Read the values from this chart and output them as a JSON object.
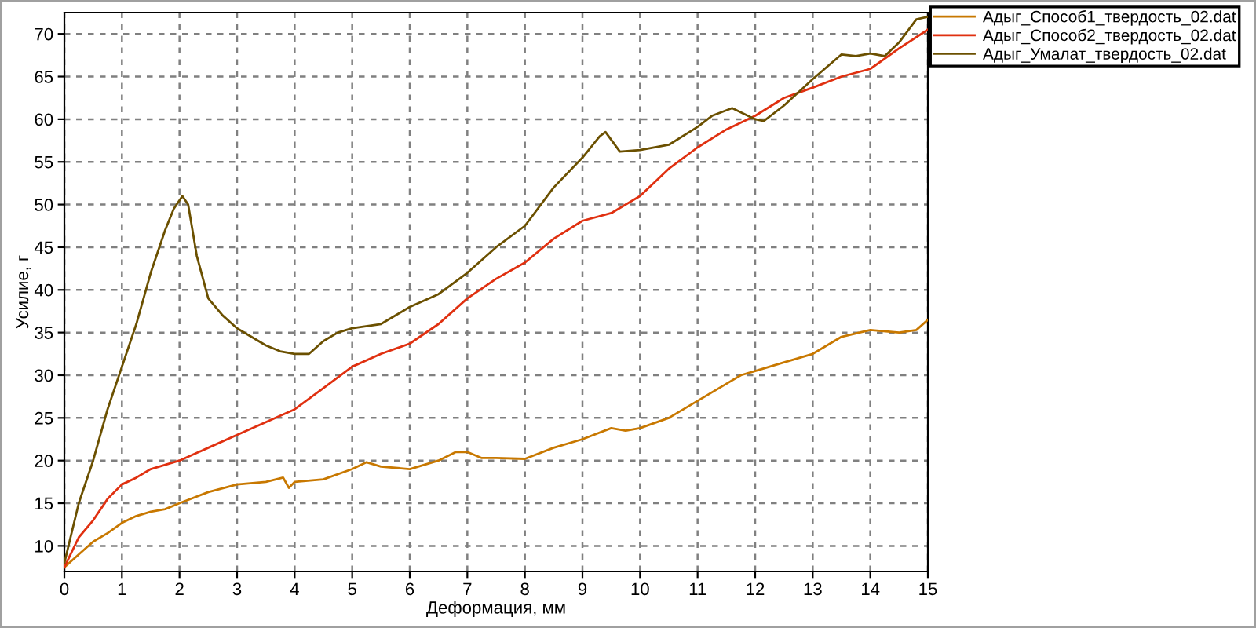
{
  "chart_data": {
    "type": "line",
    "xlabel": "Деформация, мм",
    "ylabel": "Усилие, г",
    "xlim": [
      0,
      15
    ],
    "ylim": [
      7,
      72.5
    ],
    "xticks": [
      0,
      1,
      2,
      3,
      4,
      5,
      6,
      7,
      8,
      9,
      10,
      11,
      12,
      13,
      14,
      15
    ],
    "yticks": [
      10,
      15,
      20,
      25,
      30,
      35,
      40,
      45,
      50,
      55,
      60,
      65,
      70
    ],
    "grid": true,
    "legend": "top right",
    "line_style": "solid",
    "marker": "none",
    "series": [
      {
        "name": "Адыг_Способ1_твердость_02.dat",
        "color": "#c87800",
        "x": [
          0,
          0.25,
          0.5,
          0.75,
          1,
          1.25,
          1.5,
          1.75,
          2,
          2.5,
          3,
          3.5,
          3.8,
          3.9,
          4,
          4.5,
          5,
          5.25,
          5.5,
          6,
          6.5,
          6.8,
          7,
          7.25,
          7.5,
          8,
          8.5,
          9,
          9.5,
          9.75,
          10,
          10.5,
          11,
          11.5,
          11.75,
          12,
          12.5,
          13,
          13.5,
          14,
          14.5,
          14.8,
          15
        ],
        "values": [
          7.5,
          9,
          10.5,
          11.5,
          12.7,
          13.5,
          14,
          14.3,
          15,
          16.3,
          17.2,
          17.5,
          18,
          16.8,
          17.5,
          17.8,
          19,
          19.8,
          19.3,
          19,
          20,
          21,
          21,
          20.3,
          20.3,
          20.2,
          21.5,
          22.5,
          23.8,
          23.5,
          23.8,
          25,
          27,
          29,
          30,
          30.5,
          31.5,
          32.5,
          34.5,
          35.3,
          35,
          35.3,
          36.5
        ]
      },
      {
        "name": "Адыг_Способ2_твердость_02.dat",
        "color": "#e03010",
        "x": [
          0,
          0.25,
          0.5,
          0.75,
          1,
          1.25,
          1.5,
          1.75,
          2,
          2.5,
          3,
          3.5,
          4,
          4.5,
          5,
          5.5,
          6,
          6.5,
          7,
          7.5,
          8,
          8.5,
          9,
          9.5,
          10,
          10.5,
          11,
          11.5,
          12,
          12.5,
          13,
          13.5,
          14,
          14.5,
          15
        ],
        "values": [
          7.5,
          11,
          13,
          15.5,
          17.2,
          18,
          19,
          19.5,
          20,
          21.5,
          23,
          24.5,
          26,
          28.5,
          31,
          32.5,
          33.7,
          36,
          39,
          41.3,
          43.2,
          46,
          48.1,
          49,
          51,
          54.2,
          56.7,
          58.8,
          60.4,
          62.5,
          63.7,
          65,
          65.9,
          68.3,
          70.5
        ]
      },
      {
        "name": "Адыг_Умалат_твердость_02.dat",
        "color": "#6b5000",
        "x": [
          0,
          0.25,
          0.5,
          0.75,
          1,
          1.25,
          1.5,
          1.75,
          1.9,
          2.05,
          2.15,
          2.3,
          2.5,
          2.75,
          3,
          3.5,
          3.75,
          4,
          4.25,
          4.5,
          4.75,
          5,
          5.5,
          6,
          6.5,
          7,
          7.5,
          8,
          8.5,
          9,
          9.3,
          9.4,
          9.65,
          10,
          10.5,
          11,
          11.25,
          11.6,
          12,
          12.15,
          12.5,
          13,
          13.5,
          13.75,
          14,
          14.25,
          14.5,
          14.8,
          15
        ],
        "values": [
          8,
          15,
          20,
          26,
          31,
          36,
          42,
          47,
          49.5,
          51,
          50,
          44,
          39,
          37,
          35.5,
          33.5,
          32.8,
          32.5,
          32.5,
          34,
          35,
          35.5,
          36,
          38,
          39.5,
          42,
          45,
          47.5,
          52,
          55.5,
          58,
          58.5,
          56.2,
          56.4,
          57,
          59.1,
          60.4,
          61.3,
          60,
          59.8,
          61.6,
          64.7,
          67.6,
          67.4,
          67.7,
          67.4,
          69,
          71.7,
          72
        ]
      }
    ]
  }
}
